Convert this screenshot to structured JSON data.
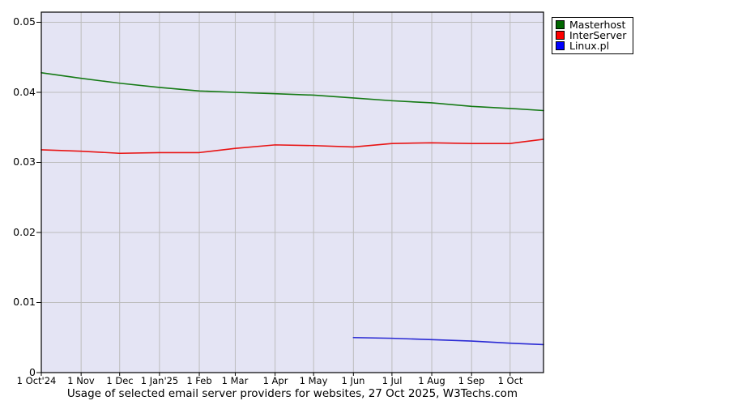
{
  "title": "Usage of selected email server providers for websites, 27 Oct 2025, W3Techs.com",
  "legend": {
    "position": "top-right",
    "items": [
      {
        "label": "Masterhost",
        "color": "#006600"
      },
      {
        "label": "InterServer",
        "color": "#ff0000"
      },
      {
        "label": "Linux.pl",
        "color": "#0000ff"
      }
    ]
  },
  "axes": {
    "y": {
      "ticks": [
        {
          "label": "0.05",
          "value": 0.05
        },
        {
          "label": "0.04",
          "value": 0.04
        },
        {
          "label": "0.03",
          "value": 0.03
        },
        {
          "label": "0.02",
          "value": 0.02
        },
        {
          "label": "0.01",
          "value": 0.01
        },
        {
          "label": "0",
          "value": 0
        }
      ]
    },
    "x": {
      "ticks": [
        {
          "label": "1 Oct'24",
          "day": 0
        },
        {
          "label": "1 Nov",
          "day": 31
        },
        {
          "label": "1 Dec",
          "day": 61
        },
        {
          "label": "1 Jan'25",
          "day": 92
        },
        {
          "label": "1 Feb",
          "day": 123
        },
        {
          "label": "1 Mar",
          "day": 151
        },
        {
          "label": "1 Apr",
          "day": 182
        },
        {
          "label": "1 May",
          "day": 212
        },
        {
          "label": "1 Jun",
          "day": 243
        },
        {
          "label": "1 Jul",
          "day": 273
        },
        {
          "label": "1 Aug",
          "day": 304
        },
        {
          "label": "1 Sep",
          "day": 335
        },
        {
          "label": "1 Oct",
          "day": 365
        }
      ]
    }
  },
  "chart_data": {
    "type": "line",
    "title": "Usage of selected email server providers for websites, 27 Oct 2025, W3Techs.com",
    "xlabel": "",
    "ylabel": "",
    "x_unit": "days since 1 Oct 2024 (ticks at month starts; series end 27 Oct 2025)",
    "x_range": [
      0,
      391
    ],
    "ylim": [
      0,
      0.05
    ],
    "grid": true,
    "legend_position": "top-right",
    "plot_background": "#e4e4f4",
    "gridline_color": "#bcbcbc",
    "border_color": "#000000",
    "series": [
      {
        "name": "Masterhost",
        "color": "#157a15",
        "x": [
          0,
          31,
          61,
          92,
          123,
          151,
          182,
          212,
          243,
          273,
          304,
          335,
          365,
          391
        ],
        "values": [
          0.0428,
          0.042,
          0.0413,
          0.0407,
          0.0402,
          0.04,
          0.0398,
          0.0396,
          0.0392,
          0.0388,
          0.0385,
          0.038,
          0.0377,
          0.0374
        ]
      },
      {
        "name": "InterServer",
        "color": "#e81414",
        "x": [
          0,
          31,
          61,
          92,
          123,
          151,
          182,
          212,
          243,
          273,
          304,
          335,
          365,
          391
        ],
        "values": [
          0.0318,
          0.0316,
          0.0313,
          0.0314,
          0.0314,
          0.032,
          0.0325,
          0.0324,
          0.0322,
          0.0327,
          0.0328,
          0.0327,
          0.0327,
          0.0333
        ]
      },
      {
        "name": "Linux.pl",
        "color": "#2a2ad4",
        "x": [
          243,
          273,
          304,
          335,
          365,
          391
        ],
        "values": [
          0.005,
          0.0049,
          0.0047,
          0.0045,
          0.0042,
          0.004
        ]
      }
    ]
  }
}
